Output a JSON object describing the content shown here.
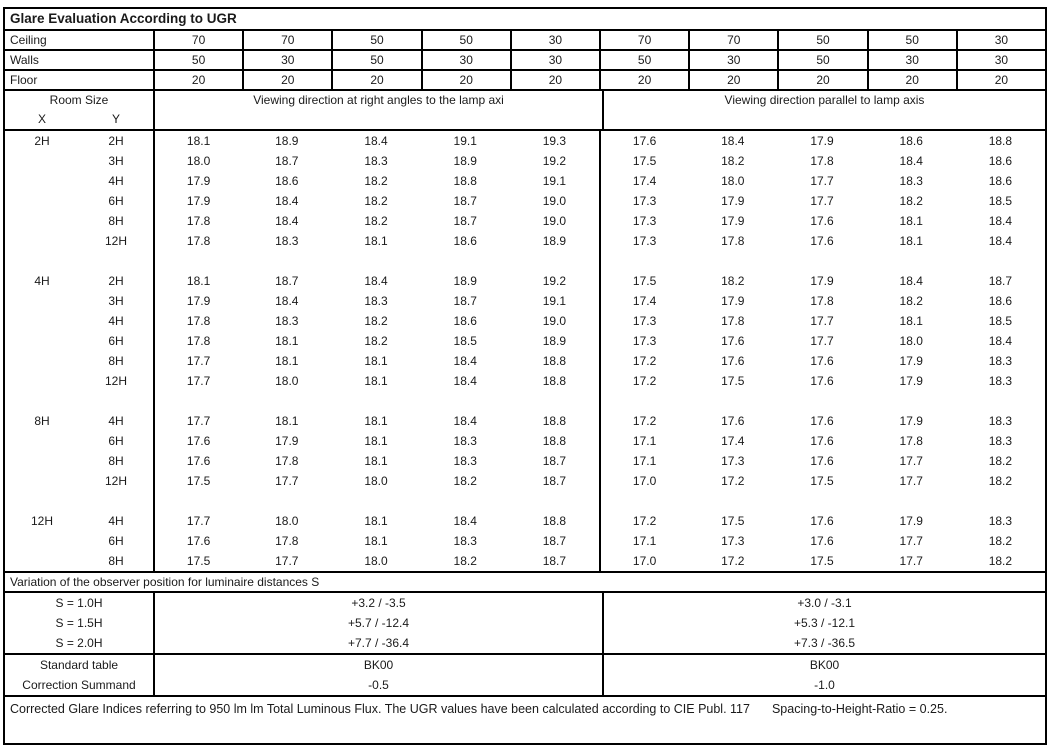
{
  "title": "Glare Evaluation According to UGR",
  "surface_rows": [
    {
      "label": "Ceiling",
      "values": [
        "70",
        "70",
        "50",
        "50",
        "30",
        "70",
        "70",
        "50",
        "50",
        "30"
      ]
    },
    {
      "label": "Walls",
      "values": [
        "50",
        "30",
        "50",
        "30",
        "30",
        "50",
        "30",
        "50",
        "30",
        "30"
      ]
    },
    {
      "label": "Floor",
      "values": [
        "20",
        "20",
        "20",
        "20",
        "20",
        "20",
        "20",
        "20",
        "20",
        "20"
      ]
    }
  ],
  "header": {
    "room_size": "Room Size",
    "x_label": "X",
    "y_label": "Y",
    "left_heading": "Viewing direction at right angles to the lamp axi",
    "right_heading": "Viewing direction parallel to lamp axis"
  },
  "ugr_blocks": [
    {
      "x": "2H",
      "rows": [
        {
          "y": "2H",
          "values": [
            "18.1",
            "18.9",
            "18.4",
            "19.1",
            "19.3",
            "17.6",
            "18.4",
            "17.9",
            "18.6",
            "18.8"
          ]
        },
        {
          "y": "3H",
          "values": [
            "18.0",
            "18.7",
            "18.3",
            "18.9",
            "19.2",
            "17.5",
            "18.2",
            "17.8",
            "18.4",
            "18.6"
          ]
        },
        {
          "y": "4H",
          "values": [
            "17.9",
            "18.6",
            "18.2",
            "18.8",
            "19.1",
            "17.4",
            "18.0",
            "17.7",
            "18.3",
            "18.6"
          ]
        },
        {
          "y": "6H",
          "values": [
            "17.9",
            "18.4",
            "18.2",
            "18.7",
            "19.0",
            "17.3",
            "17.9",
            "17.7",
            "18.2",
            "18.5"
          ]
        },
        {
          "y": "8H",
          "values": [
            "17.8",
            "18.4",
            "18.2",
            "18.7",
            "19.0",
            "17.3",
            "17.9",
            "17.6",
            "18.1",
            "18.4"
          ]
        },
        {
          "y": "12H",
          "values": [
            "17.8",
            "18.3",
            "18.1",
            "18.6",
            "18.9",
            "17.3",
            "17.8",
            "17.6",
            "18.1",
            "18.4"
          ]
        }
      ]
    },
    {
      "x": "4H",
      "rows": [
        {
          "y": "2H",
          "values": [
            "18.1",
            "18.7",
            "18.4",
            "18.9",
            "19.2",
            "17.5",
            "18.2",
            "17.9",
            "18.4",
            "18.7"
          ]
        },
        {
          "y": "3H",
          "values": [
            "17.9",
            "18.4",
            "18.3",
            "18.7",
            "19.1",
            "17.4",
            "17.9",
            "17.8",
            "18.2",
            "18.6"
          ]
        },
        {
          "y": "4H",
          "values": [
            "17.8",
            "18.3",
            "18.2",
            "18.6",
            "19.0",
            "17.3",
            "17.8",
            "17.7",
            "18.1",
            "18.5"
          ]
        },
        {
          "y": "6H",
          "values": [
            "17.8",
            "18.1",
            "18.2",
            "18.5",
            "18.9",
            "17.3",
            "17.6",
            "17.7",
            "18.0",
            "18.4"
          ]
        },
        {
          "y": "8H",
          "values": [
            "17.7",
            "18.1",
            "18.1",
            "18.4",
            "18.8",
            "17.2",
            "17.6",
            "17.6",
            "17.9",
            "18.3"
          ]
        },
        {
          "y": "12H",
          "values": [
            "17.7",
            "18.0",
            "18.1",
            "18.4",
            "18.8",
            "17.2",
            "17.5",
            "17.6",
            "17.9",
            "18.3"
          ]
        }
      ]
    },
    {
      "x": "8H",
      "rows": [
        {
          "y": "4H",
          "values": [
            "17.7",
            "18.1",
            "18.1",
            "18.4",
            "18.8",
            "17.2",
            "17.6",
            "17.6",
            "17.9",
            "18.3"
          ]
        },
        {
          "y": "6H",
          "values": [
            "17.6",
            "17.9",
            "18.1",
            "18.3",
            "18.8",
            "17.1",
            "17.4",
            "17.6",
            "17.8",
            "18.3"
          ]
        },
        {
          "y": "8H",
          "values": [
            "17.6",
            "17.8",
            "18.1",
            "18.3",
            "18.7",
            "17.1",
            "17.3",
            "17.6",
            "17.7",
            "18.2"
          ]
        },
        {
          "y": "12H",
          "values": [
            "17.5",
            "17.7",
            "18.0",
            "18.2",
            "18.7",
            "17.0",
            "17.2",
            "17.5",
            "17.7",
            "18.2"
          ]
        }
      ]
    },
    {
      "x": "12H",
      "rows": [
        {
          "y": "4H",
          "values": [
            "17.7",
            "18.0",
            "18.1",
            "18.4",
            "18.8",
            "17.2",
            "17.5",
            "17.6",
            "17.9",
            "18.3"
          ]
        },
        {
          "y": "6H",
          "values": [
            "17.6",
            "17.8",
            "18.1",
            "18.3",
            "18.7",
            "17.1",
            "17.3",
            "17.6",
            "17.7",
            "18.2"
          ]
        },
        {
          "y": "8H",
          "values": [
            "17.5",
            "17.7",
            "18.0",
            "18.2",
            "18.7",
            "17.0",
            "17.2",
            "17.5",
            "17.7",
            "18.2"
          ]
        }
      ]
    }
  ],
  "variation": {
    "heading": "Variation of the observer position for luminaire distances S",
    "rows": [
      {
        "label": "S = 1.0H",
        "left": "+3.2 / -3.5",
        "right": "+3.0 / -3.1"
      },
      {
        "label": "S = 1.5H",
        "left": "+5.7 / -12.4",
        "right": "+5.3 / -12.1"
      },
      {
        "label": "S = 2.0H",
        "left": "+7.7 / -36.4",
        "right": "+7.3 / -36.5"
      }
    ]
  },
  "summary_rows": [
    {
      "label": "Standard table",
      "left": "BK00",
      "right": "BK00"
    },
    {
      "label": "Correction Summand",
      "left": "-0.5",
      "right": "-1.0"
    }
  ],
  "footer": {
    "main": "Corrected Glare Indices referring to 950 lm lm Total Luminous Flux. The UGR values have been calculated according to CIE Publ. 117",
    "ratio": "Spacing-to-Height-Ratio = 0.25."
  }
}
